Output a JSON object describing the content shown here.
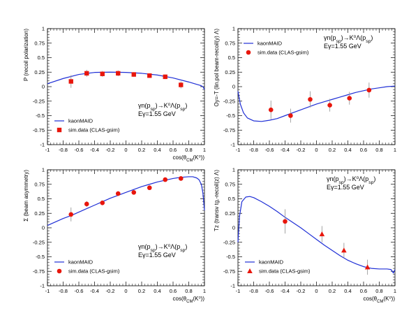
{
  "chart_data": [
    {
      "type": "scatter",
      "ylabel": "P  (recoil polarization)",
      "xlabel": "cos(θ_CM(K⁰))",
      "xlim": [
        -1,
        1
      ],
      "ylim": [
        -1,
        1
      ],
      "xticks": [
        "-1",
        "-0.8",
        "-0.6",
        "-0.4",
        "-0.2",
        "0",
        "0.2",
        "0.4",
        "0.6",
        "0.8",
        "1"
      ],
      "yticks": [
        "-1",
        "-0.75",
        "-0.5",
        "-0.25",
        "0",
        "0.25",
        "0.5",
        "0.75",
        "1"
      ],
      "annotation": [
        "γn(p_sp)→K⁰Λ(p_sp)",
        "Eγ=1.55 GeV"
      ],
      "legend": {
        "line": "kaonMAID",
        "marker": "sim.data (CLAS-gsim)",
        "marker_shape": "square"
      },
      "line_color": "#1f2fd6",
      "marker_color": "#e8160c",
      "model_curve": {
        "x": [
          -1,
          -0.8,
          -0.6,
          -0.4,
          -0.2,
          0,
          0.2,
          0.4,
          0.6,
          0.8,
          0.9,
          0.95,
          0.98,
          1
        ],
        "y": [
          0.05,
          0.14,
          0.21,
          0.245,
          0.25,
          0.245,
          0.23,
          0.2,
          0.15,
          0.08,
          0.04,
          0.02,
          0.0,
          -0.05
        ]
      },
      "points": [
        {
          "x": -0.7,
          "y": 0.09,
          "err": 0.11
        },
        {
          "x": -0.5,
          "y": 0.23,
          "err": 0.06
        },
        {
          "x": -0.3,
          "y": 0.22,
          "err": 0.05
        },
        {
          "x": -0.1,
          "y": 0.23,
          "err": 0.05
        },
        {
          "x": 0.1,
          "y": 0.21,
          "err": 0.04
        },
        {
          "x": 0.3,
          "y": 0.19,
          "err": 0.04
        },
        {
          "x": 0.5,
          "y": 0.17,
          "err": 0.04
        },
        {
          "x": 0.7,
          "y": 0.03,
          "err": 0.06
        }
      ]
    },
    {
      "type": "scatter",
      "ylabel": "Oy=-T  (lin.pol beam-recoil(y) Λ)",
      "xlabel": "",
      "xlim": [
        -1,
        1
      ],
      "ylim": [
        -1,
        1
      ],
      "xticks": [
        "-1",
        "-0.8",
        "-0.6",
        "-0.4",
        "-0.2",
        "0",
        "0.2",
        "0.4",
        "0.6",
        "0.8",
        "1"
      ],
      "yticks": [
        "-1",
        "-0.75",
        "-0.5",
        "-0.25",
        "0",
        "0.25",
        "0.5",
        "0.75",
        "1"
      ],
      "annotation": [
        "γn(p_sp)→K⁰Λ(p_sp)",
        "Eγ=1.55 GeV"
      ],
      "legend": {
        "line": "kaonMAID",
        "marker": "sim.data (CLAS-gsim)",
        "marker_shape": "circle"
      },
      "line_color": "#1f2fd6",
      "marker_color": "#e8160c",
      "model_curve": {
        "x": [
          -1,
          -0.97,
          -0.93,
          -0.88,
          -0.8,
          -0.7,
          -0.6,
          -0.5,
          -0.4,
          -0.3,
          -0.2,
          -0.1,
          0,
          0.1,
          0.2,
          0.3,
          0.4,
          0.5,
          0.6,
          0.7,
          0.8,
          0.9,
          1
        ],
        "y": [
          -0.08,
          -0.3,
          -0.45,
          -0.54,
          -0.59,
          -0.6,
          -0.58,
          -0.55,
          -0.5,
          -0.45,
          -0.4,
          -0.35,
          -0.3,
          -0.26,
          -0.22,
          -0.18,
          -0.14,
          -0.1,
          -0.07,
          -0.04,
          -0.02,
          0.0,
          0.01
        ]
      },
      "points": [
        {
          "x": -0.58,
          "y": -0.4,
          "err": 0.16
        },
        {
          "x": -0.33,
          "y": -0.5,
          "err": 0.12
        },
        {
          "x": -0.08,
          "y": -0.22,
          "err": 0.14
        },
        {
          "x": 0.17,
          "y": -0.32,
          "err": 0.11
        },
        {
          "x": 0.42,
          "y": -0.2,
          "err": 0.11
        },
        {
          "x": 0.67,
          "y": -0.06,
          "err": 0.13
        }
      ]
    },
    {
      "type": "scatter",
      "ylabel": "Σ  (beam asymmetry)",
      "xlabel": "cos(θ_CM(K⁰))",
      "xlim": [
        -1,
        1
      ],
      "ylim": [
        -1,
        1
      ],
      "xticks": [
        "-1",
        "-0.8",
        "-0.6",
        "-0.4",
        "-0.2",
        "0",
        "0.2",
        "0.4",
        "0.6",
        "0.8",
        "1"
      ],
      "yticks": [
        "-1",
        "-0.75",
        "-0.5",
        "-0.25",
        "0",
        "0.25",
        "0.5",
        "0.75",
        "1"
      ],
      "annotation": [
        "γn(p_sp)→K⁰Λ(p_sp)",
        "Eγ=1.55 GeV"
      ],
      "legend": {
        "line": "kaonMAID",
        "marker": "sim.data (CLAS-gsim)",
        "marker_shape": "circle"
      },
      "line_color": "#1f2fd6",
      "marker_color": "#e8160c",
      "model_curve": {
        "x": [
          -1,
          -0.9,
          -0.8,
          -0.7,
          -0.6,
          -0.5,
          -0.4,
          -0.3,
          -0.2,
          -0.1,
          0,
          0.1,
          0.2,
          0.3,
          0.4,
          0.5,
          0.6,
          0.7,
          0.8,
          0.85,
          0.9,
          0.93,
          0.96,
          0.98,
          1
        ],
        "y": [
          0.04,
          0.1,
          0.16,
          0.21,
          0.27,
          0.33,
          0.39,
          0.45,
          0.51,
          0.56,
          0.61,
          0.66,
          0.71,
          0.75,
          0.79,
          0.82,
          0.85,
          0.87,
          0.88,
          0.88,
          0.86,
          0.83,
          0.75,
          0.6,
          0.3
        ]
      },
      "points": [
        {
          "x": -0.7,
          "y": 0.23,
          "err": 0.12
        },
        {
          "x": -0.5,
          "y": 0.41,
          "err": 0.05
        },
        {
          "x": -0.3,
          "y": 0.43,
          "err": 0.04
        },
        {
          "x": -0.1,
          "y": 0.59,
          "err": 0.04
        },
        {
          "x": 0.1,
          "y": 0.61,
          "err": 0.04
        },
        {
          "x": 0.3,
          "y": 0.69,
          "err": 0.04
        },
        {
          "x": 0.5,
          "y": 0.83,
          "err": 0.03
        },
        {
          "x": 0.7,
          "y": 0.85,
          "err": 0.04
        }
      ]
    },
    {
      "type": "scatter",
      "ylabel": "Tz  (transv tg.-recoil(z) Λ)",
      "xlabel": "cos(θ_CM(K⁰))",
      "xlim": [
        -1,
        1
      ],
      "ylim": [
        -1,
        1
      ],
      "xticks": [
        "-1",
        "-0.8",
        "-0.6",
        "-0.4",
        "-0.2",
        "0",
        "0.2",
        "0.4",
        "0.6",
        "0.8",
        "1"
      ],
      "yticks": [
        "-1",
        "-0.75",
        "-0.5",
        "-0.25",
        "0",
        "0.25",
        "0.5",
        "0.75",
        "1"
      ],
      "annotation": [
        "γn(p_sp)→K⁰Λ(p_sp)",
        "Eγ=1.55 GeV"
      ],
      "legend": {
        "line": "kaonMAID",
        "marker": "sim.data (CLAS-gsim)",
        "marker_shape": "triangle"
      },
      "line_color": "#1f2fd6",
      "marker_color": "#e8160c",
      "model_curve": {
        "x": [
          -1,
          -0.98,
          -0.95,
          -0.9,
          -0.85,
          -0.8,
          -0.7,
          -0.6,
          -0.5,
          -0.4,
          -0.3,
          -0.2,
          -0.1,
          0,
          0.1,
          0.2,
          0.3,
          0.4,
          0.5,
          0.6,
          0.7,
          0.8,
          0.9,
          0.95,
          0.98,
          1
        ],
        "y": [
          -0.25,
          0.2,
          0.45,
          0.53,
          0.54,
          0.52,
          0.45,
          0.37,
          0.28,
          0.18,
          0.09,
          0.0,
          -0.1,
          -0.2,
          -0.3,
          -0.39,
          -0.48,
          -0.56,
          -0.62,
          -0.67,
          -0.7,
          -0.71,
          -0.71,
          -0.72,
          -0.78,
          -0.72
        ]
      },
      "points": [
        {
          "x": -0.4,
          "y": 0.11,
          "err": 0.21,
          "marker": "circle"
        },
        {
          "x": 0.07,
          "y": -0.11,
          "err": 0.14
        },
        {
          "x": 0.35,
          "y": -0.39,
          "err": 0.13
        },
        {
          "x": 0.65,
          "y": -0.68,
          "err": 0.13
        }
      ]
    }
  ]
}
